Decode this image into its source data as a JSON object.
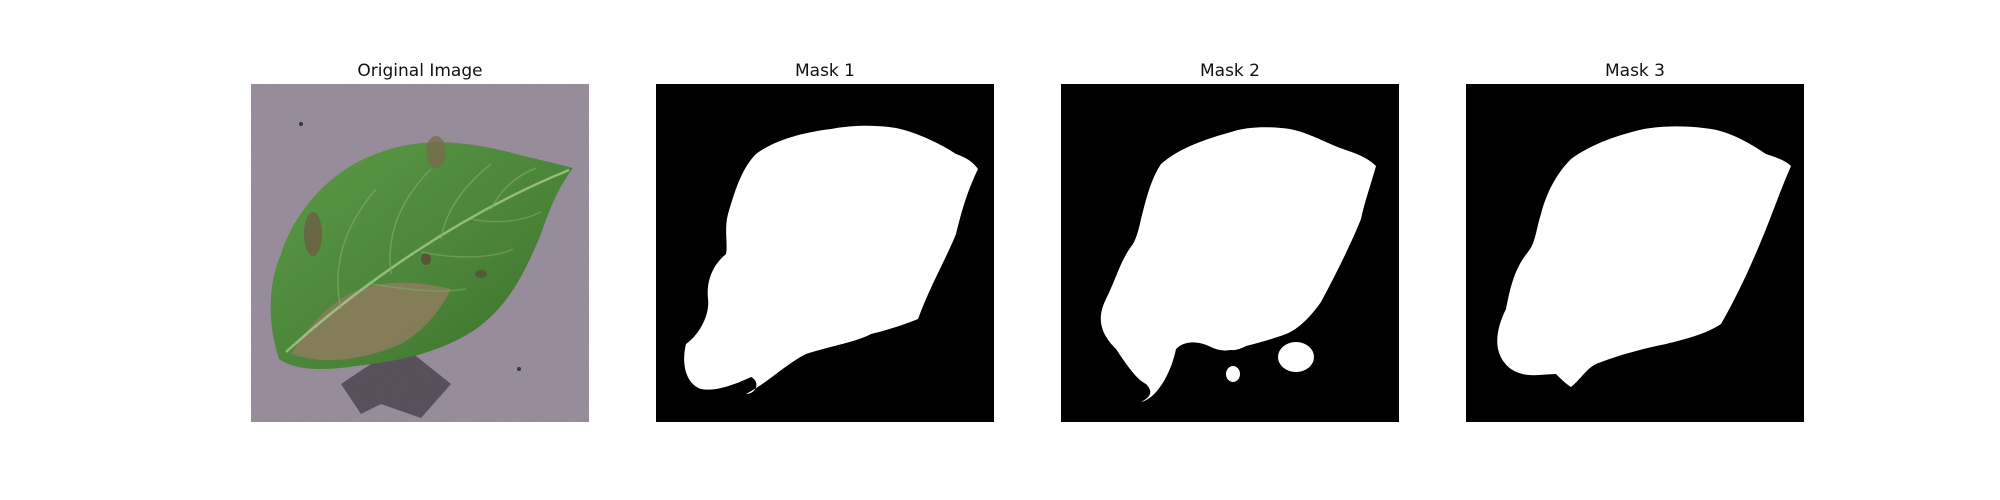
{
  "figure": {
    "panels": [
      {
        "title": "Original Image"
      },
      {
        "title": "Mask 1"
      },
      {
        "title": "Mask 2"
      },
      {
        "title": "Mask 3"
      }
    ]
  },
  "colors": {
    "mask_background": "#000000",
    "mask_foreground": "#ffffff",
    "surface": "#8e8290",
    "leaf": "#4f8a3c",
    "leaf_dark": "#3a6c2c",
    "lesion": "#8a7a5c",
    "shadow": "#4a434f"
  }
}
